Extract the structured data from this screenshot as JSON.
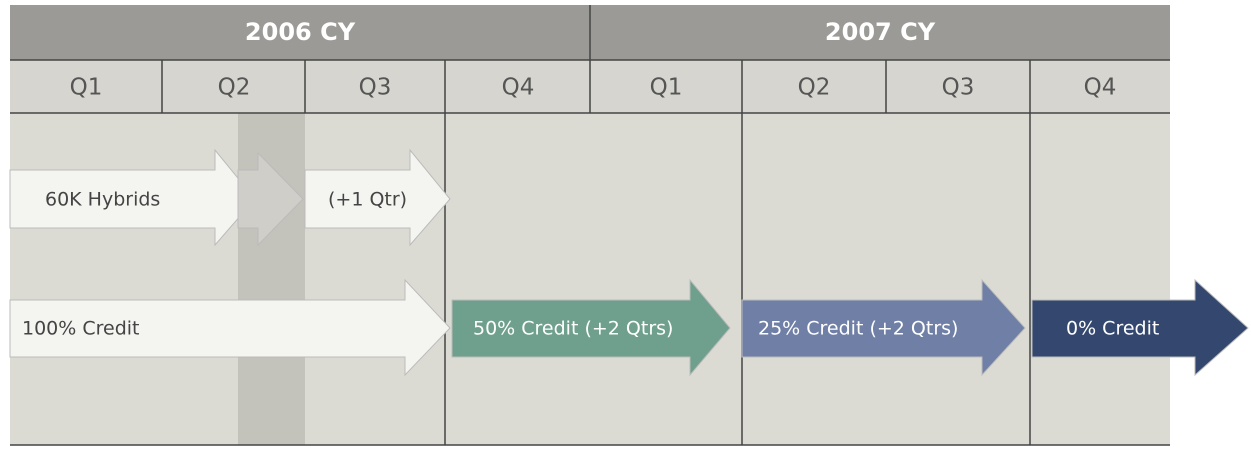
{
  "years": [
    "2006 CY",
    "2007 CY"
  ],
  "quarters": [
    "Q1",
    "Q2",
    "Q3",
    "Q4",
    "Q1",
    "Q2",
    "Q3",
    "Q4"
  ],
  "arrows": [
    "60K Hybrids",
    "(+1 Qtr)",
    "100% Credit",
    "50% Credit (+2 Qtrs)",
    "25% Credit (+2 Qtrs)",
    "0% Credit"
  ]
}
